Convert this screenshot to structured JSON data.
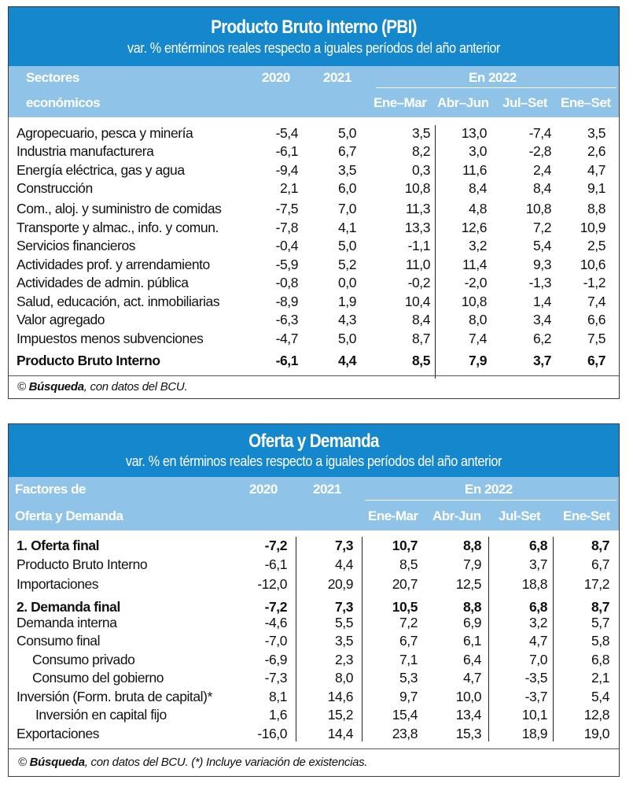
{
  "pbi": {
    "title": "Producto Bruto Interno (PBI)",
    "subtitle": "var. % entérminos reales respecto a iguales períodos del año anterior",
    "header": {
      "label_line1": "Sectores",
      "label_line2": "económicos",
      "y2020": "2020",
      "y2021": "2021",
      "group": "En 2022",
      "q1": "Ene–Mar",
      "q2": "Abr–Jun",
      "q3": "Jul–Set",
      "q4": "Ene–Set"
    },
    "rows": [
      {
        "label": "Agropecuario, pesca y minería",
        "v": [
          "-5,4",
          "5,0",
          "3,5",
          "13,0",
          "-7,4",
          "3,5"
        ]
      },
      {
        "label": "Industria manufacturera",
        "v": [
          "-6,1",
          "6,7",
          "8,2",
          "3,0",
          "-2,8",
          "2,6"
        ]
      },
      {
        "label": "Energía eléctrica, gas y agua",
        "v": [
          "-9,4",
          "3,5",
          "0,3",
          "11,6",
          "2,4",
          "4,7"
        ]
      },
      {
        "label": "Construcción",
        "v": [
          "2,1",
          "6,0",
          "10,8",
          "8,4",
          "8,4",
          "9,1"
        ]
      },
      {
        "label": "Com., aloj. y suministro de comidas",
        "v": [
          "-7,5",
          "7,0",
          "11,3",
          "4,8",
          "10,8",
          "8,8"
        ]
      },
      {
        "label": "Transporte y almac., info. y comun.",
        "v": [
          "-7,8",
          "4,1",
          "13,3",
          "12,6",
          "7,2",
          "10,9"
        ]
      },
      {
        "label": "Servicios financieros",
        "v": [
          "-0,4",
          "5,0",
          "-1,1",
          "3,2",
          "5,4",
          "2,5"
        ]
      },
      {
        "label": "Actividades prof. y arrendamiento",
        "v": [
          "-5,9",
          "5,2",
          "11,0",
          "11,4",
          "9,3",
          "10,6"
        ]
      },
      {
        "label": "Actividades de admin. pública",
        "v": [
          "-0,8",
          "0,0",
          "-0,2",
          "-2,0",
          "-1,3",
          "-1,2"
        ]
      },
      {
        "label": "Salud, educación, act. inmobiliarias",
        "v": [
          "-8,9",
          "1,9",
          "10,4",
          "10,8",
          "1,4",
          "7,4"
        ]
      },
      {
        "label": "Valor agregado",
        "v": [
          "-6,3",
          "4,3",
          "8,4",
          "8,0",
          "3,4",
          "6,6"
        ]
      },
      {
        "label": "Impuestos menos subvenciones",
        "v": [
          "-4,7",
          "5,0",
          "8,7",
          "7,4",
          "6,2",
          "7,5"
        ]
      },
      {
        "label": "Producto Bruto Interno",
        "v": [
          "-6,1",
          "4,4",
          "8,5",
          "7,9",
          "3,7",
          "6,7"
        ]
      }
    ],
    "footer": {
      "copyright": "©",
      "source_name": "Búsqueda",
      "source_rest": ", con datos del BCU."
    }
  },
  "oferta": {
    "title": "Oferta y Demanda",
    "subtitle": "var. % en términos reales respecto a iguales períodos del año anterior",
    "header": {
      "label_line1": "Factores de",
      "label_line2": "Oferta y Demanda",
      "y2020": "2020",
      "y2021": "2021",
      "group": "En 2022",
      "q1": "Ene-Mar",
      "q2": "Abr-Jun",
      "q3": "Jul-Set",
      "q4": "Ene-Set"
    },
    "rows": [
      {
        "label": "1. Oferta final",
        "v": [
          "-7,2",
          "7,3",
          "10,7",
          "8,8",
          "6,8",
          "8,7"
        ]
      },
      {
        "label": "Producto Bruto Interno",
        "v": [
          "-6,1",
          "4,4",
          "8,5",
          "7,9",
          "3,7",
          "6,7"
        ]
      },
      {
        "label": "Importaciones",
        "v": [
          "-12,0",
          "20,9",
          "20,7",
          "12,5",
          "18,8",
          "17,2"
        ]
      },
      {
        "label": "2. Demanda final",
        "v": [
          "-7,2",
          "7,3",
          "10,5",
          "8,8",
          "6,8",
          "8,7"
        ]
      },
      {
        "label": "Demanda interna",
        "v": [
          "-4,6",
          "5,5",
          "7,2",
          "6,9",
          "3,2",
          "5,7"
        ]
      },
      {
        "label": "Consumo final",
        "v": [
          "-7,0",
          "3,5",
          "6,7",
          "6,1",
          "4,7",
          "5,8"
        ]
      },
      {
        "label": "Consumo privado",
        "v": [
          "-6,9",
          "2,3",
          "7,1",
          "6,4",
          "7,0",
          "6,8"
        ]
      },
      {
        "label": "Consumo del gobierno",
        "v": [
          "-7,3",
          "8,0",
          "5,3",
          "4,7",
          "-3,5",
          "2,1"
        ]
      },
      {
        "label": "Inversión (Form. bruta de capital)*",
        "v": [
          "8,1",
          "14,6",
          "9,7",
          "10,0",
          "-3,7",
          "5,4"
        ]
      },
      {
        "label": "Inversión en capital fijo",
        "v": [
          "1,6",
          "15,2",
          "15,4",
          "13,4",
          "10,1",
          "12,8"
        ]
      },
      {
        "label": "Exportaciones",
        "v": [
          "-16,0",
          "14,4",
          "23,8",
          "15,3",
          "18,9",
          "19,0"
        ]
      }
    ],
    "footer": {
      "copyright": "©",
      "source_name": "Búsqueda",
      "source_rest": ", con datos del BCU. (*) Incluye variación de existencias."
    }
  }
}
